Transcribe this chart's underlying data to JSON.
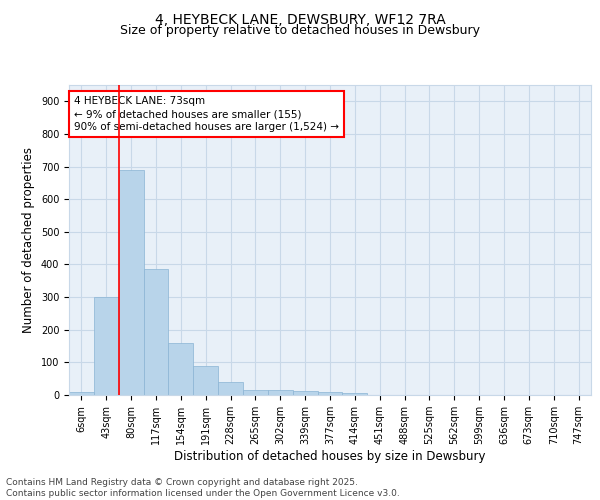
{
  "title_line1": "4, HEYBECK LANE, DEWSBURY, WF12 7RA",
  "title_line2": "Size of property relative to detached houses in Dewsbury",
  "xlabel": "Distribution of detached houses by size in Dewsbury",
  "ylabel": "Number of detached properties",
  "categories": [
    "6sqm",
    "43sqm",
    "80sqm",
    "117sqm",
    "154sqm",
    "191sqm",
    "228sqm",
    "265sqm",
    "302sqm",
    "339sqm",
    "377sqm",
    "414sqm",
    "451sqm",
    "488sqm",
    "525sqm",
    "562sqm",
    "599sqm",
    "636sqm",
    "673sqm",
    "710sqm",
    "747sqm"
  ],
  "values": [
    8,
    300,
    690,
    385,
    158,
    90,
    40,
    15,
    15,
    12,
    10,
    5,
    0,
    0,
    0,
    0,
    0,
    0,
    0,
    0,
    0
  ],
  "bar_color": "#b8d4ea",
  "bar_edge_color": "#8ab4d4",
  "grid_color": "#c8d8e8",
  "background_color": "#e8f0f8",
  "vline_x": 1.5,
  "vline_color": "red",
  "annotation_text": "4 HEYBECK LANE: 73sqm\n← 9% of detached houses are smaller (155)\n90% of semi-detached houses are larger (1,524) →",
  "annotation_box_color": "red",
  "ylim": [
    0,
    950
  ],
  "yticks": [
    0,
    100,
    200,
    300,
    400,
    500,
    600,
    700,
    800,
    900
  ],
  "footer_text": "Contains HM Land Registry data © Crown copyright and database right 2025.\nContains public sector information licensed under the Open Government Licence v3.0.",
  "title_fontsize": 10,
  "subtitle_fontsize": 9,
  "axis_label_fontsize": 8.5,
  "tick_fontsize": 7,
  "annotation_fontsize": 7.5,
  "footer_fontsize": 6.5
}
